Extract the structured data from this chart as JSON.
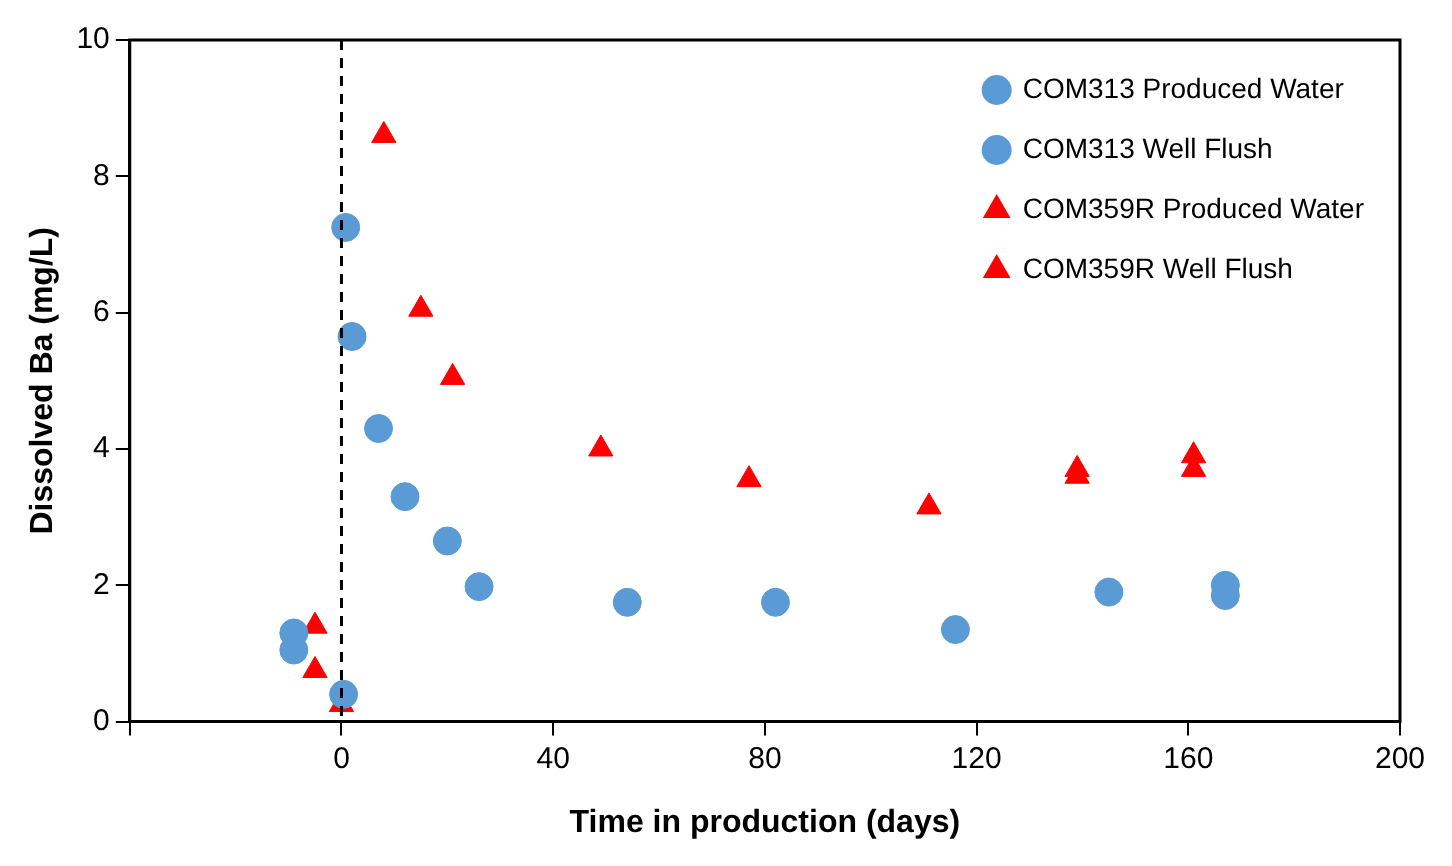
{
  "chart_data": {
    "type": "scatter",
    "xlabel": "Time in production (days)",
    "ylabel": "Dissolved Ba (mg/L)",
    "xlim": [
      -40,
      200
    ],
    "xticks": [
      {
        "value": -40,
        "label": null
      },
      0,
      40,
      80,
      120,
      160,
      200
    ],
    "ylim": [
      0,
      10
    ],
    "yticks": [
      0,
      2,
      4,
      6,
      8,
      10
    ],
    "grid": false,
    "legend": "top right",
    "ref_lines": [
      {
        "axis": "x",
        "value": 0,
        "color": "#000000",
        "line_style": "dashed"
      }
    ],
    "series": [
      {
        "name": "COM313 Produced Water",
        "color": "#5b9bd5",
        "marker": "circle",
        "x": [
          0.4,
          0.8,
          2,
          7,
          12,
          20,
          26,
          54,
          82,
          116,
          145,
          167,
          167
        ],
        "values": [
          0.4,
          7.25,
          5.65,
          4.3,
          3.3,
          2.65,
          1.98,
          1.75,
          1.75,
          1.35,
          1.9,
          2.0,
          1.85
        ]
      },
      {
        "name": "COM313 Well Flush",
        "color": "#5b9bd5",
        "marker": "circle",
        "x": [
          -9,
          -9
        ],
        "values": [
          1.3,
          1.05
        ]
      },
      {
        "name": "COM359R Produced Water",
        "color": "#ff0000",
        "marker": "triangle",
        "x": [
          0,
          8,
          15,
          21,
          49,
          77,
          111,
          139,
          139,
          161,
          161
        ],
        "values": [
          0.25,
          8.6,
          6.05,
          5.05,
          4.0,
          3.55,
          3.15,
          3.7,
          3.6,
          3.9,
          3.7
        ]
      },
      {
        "name": "COM359R Well Flush",
        "color": "#ff0000",
        "marker": "triangle",
        "x": [
          -5,
          -5
        ],
        "values": [
          1.4,
          0.75
        ]
      }
    ]
  }
}
